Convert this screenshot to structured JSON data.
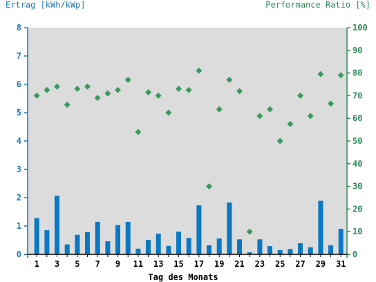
{
  "chart_data": {
    "type": "bar",
    "ylabel_left": "Ertrag [kWh/kWp]",
    "ylabel_right": "Performance Ratio [%]",
    "xlabel": "Tag des Monats",
    "x": [
      1,
      2,
      3,
      4,
      5,
      6,
      7,
      8,
      9,
      10,
      11,
      12,
      13,
      14,
      15,
      16,
      17,
      18,
      19,
      20,
      21,
      22,
      23,
      24,
      25,
      26,
      27,
      28,
      29,
      30,
      31
    ],
    "x_tick_labels": [
      "1",
      "3",
      "5",
      "7",
      "9",
      "11",
      "13",
      "15",
      "17",
      "19",
      "21",
      "23",
      "25",
      "27",
      "29",
      "31"
    ],
    "ylim_left": [
      0,
      8
    ],
    "ylim_right": [
      0,
      100
    ],
    "y_ticks_left": [
      "0",
      "1",
      "2",
      "3",
      "4",
      "5",
      "6",
      "7",
      "8"
    ],
    "y_ticks_right": [
      "0",
      "10",
      "20",
      "30",
      "40",
      "50",
      "60",
      "70",
      "80",
      "90",
      "100"
    ],
    "series": [
      {
        "type": "bar",
        "axis": "left",
        "color": "#0a78c2",
        "values": [
          1.28,
          0.85,
          2.07,
          0.35,
          0.69,
          0.78,
          1.15,
          0.46,
          1.03,
          1.15,
          0.2,
          0.51,
          0.73,
          0.3,
          0.8,
          0.58,
          1.73,
          0.32,
          0.56,
          1.83,
          0.53,
          0.07,
          0.53,
          0.29,
          0.15,
          0.19,
          0.39,
          0.25,
          1.89,
          0.32,
          0.9
        ]
      },
      {
        "type": "scatter",
        "axis": "right",
        "color": "#3a9a5e",
        "marker": "diamond",
        "values": [
          70,
          72.5,
          74,
          66,
          73,
          74,
          69,
          71,
          72.5,
          77,
          54,
          71.5,
          70,
          62.5,
          73,
          72.5,
          81,
          30,
          64,
          77,
          72,
          10,
          61,
          64,
          50,
          57.5,
          70,
          61,
          79.5,
          66.5,
          79
        ]
      }
    ],
    "plot_background": "#dcdcdc",
    "grid": false,
    "legend": "none"
  }
}
